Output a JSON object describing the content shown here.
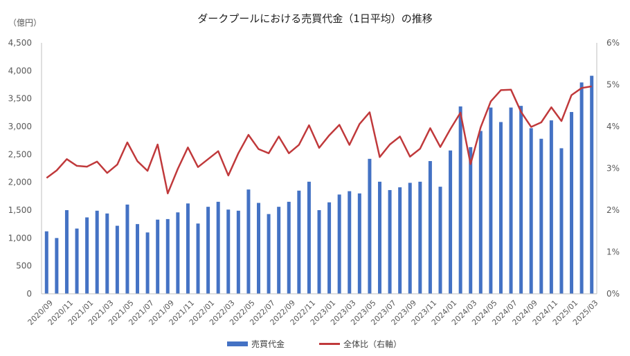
{
  "chart_data": {
    "type": "bar",
    "title": "ダークプールにおける売買代金（1日平均）の推移",
    "ylabel_left": "（億円）",
    "ylim_left": [
      0,
      4500
    ],
    "yticks_left": [
      "0",
      "500",
      "1,000",
      "1,500",
      "2,000",
      "2,500",
      "3,000",
      "3,500",
      "4,000",
      "4,500"
    ],
    "ylim_right": [
      0,
      6
    ],
    "yticks_right": [
      "0%",
      "1%",
      "2%",
      "3%",
      "4%",
      "5%",
      "6%"
    ],
    "x": [
      "2020/09",
      "2020/10",
      "2020/11",
      "2020/12",
      "2021/01",
      "2021/02",
      "2021/03",
      "2021/04",
      "2021/05",
      "2021/06",
      "2021/07",
      "2021/08",
      "2021/09",
      "2021/10",
      "2021/11",
      "2021/12",
      "2022/01",
      "2022/02",
      "2022/03",
      "2022/04",
      "2022/05",
      "2022/06",
      "2022/07",
      "2022/08",
      "2022/09",
      "2022/10",
      "2022/11",
      "2022/12",
      "2023/01",
      "2023/02",
      "2023/03",
      "2023/04",
      "2023/05",
      "2023/06",
      "2023/07",
      "2023/08",
      "2023/09",
      "2023/10",
      "2023/11",
      "2023/12",
      "2024/01",
      "2024/02",
      "2024/03",
      "2024/04",
      "2024/05",
      "2024/06",
      "2024/07",
      "2024/08",
      "2024/09",
      "2024/10",
      "2024/11",
      "2024/12",
      "2025/01",
      "2025/02",
      "2025/03"
    ],
    "xticks_shown": [
      "2020/09",
      "2020/11",
      "2021/01",
      "2021/03",
      "2021/05",
      "2021/07",
      "2021/09",
      "2021/11",
      "2022/01",
      "2022/03",
      "2022/05",
      "2022/07",
      "2022/09",
      "2022/11",
      "2023/01",
      "2023/03",
      "2023/05",
      "2023/07",
      "2023/09",
      "2023/11",
      "2024/01",
      "2024/03",
      "2024/05",
      "2024/07",
      "2024/09",
      "2024/11",
      "2025/01",
      "2025/03"
    ],
    "series": [
      {
        "name": "売買代金",
        "type": "bar",
        "axis": "left",
        "color": "#4472C4",
        "values": [
          1120,
          1000,
          1500,
          1170,
          1370,
          1490,
          1440,
          1220,
          1600,
          1250,
          1100,
          1330,
          1340,
          1460,
          1620,
          1260,
          1560,
          1650,
          1510,
          1490,
          1870,
          1630,
          1430,
          1560,
          1650,
          1850,
          2010,
          1500,
          1640,
          1780,
          1840,
          1800,
          2420,
          2010,
          1860,
          1910,
          1990,
          2010,
          2380,
          1920,
          2570,
          3360,
          2630,
          2920,
          3340,
          3080,
          3340,
          3370,
          2970,
          2780,
          3110,
          2610,
          3260,
          3790,
          3910
        ]
      },
      {
        "name": "全体比（右軸）",
        "type": "line",
        "axis": "right",
        "color": "#C0393B",
        "values": [
          2.77,
          2.95,
          3.22,
          3.06,
          3.04,
          3.16,
          2.89,
          3.09,
          3.62,
          3.17,
          2.94,
          3.57,
          2.4,
          2.99,
          3.5,
          3.03,
          3.22,
          3.41,
          2.83,
          3.36,
          3.8,
          3.46,
          3.36,
          3.76,
          3.36,
          3.56,
          4.03,
          3.49,
          3.79,
          4.04,
          3.56,
          4.06,
          4.34,
          3.27,
          3.57,
          3.76,
          3.28,
          3.47,
          3.96,
          3.51,
          3.94,
          4.33,
          3.1,
          3.98,
          4.6,
          4.87,
          4.88,
          4.35,
          3.99,
          4.1,
          4.46,
          4.13,
          4.75,
          4.92,
          4.96
        ]
      }
    ],
    "legend_position": "bottom",
    "grid": false
  }
}
